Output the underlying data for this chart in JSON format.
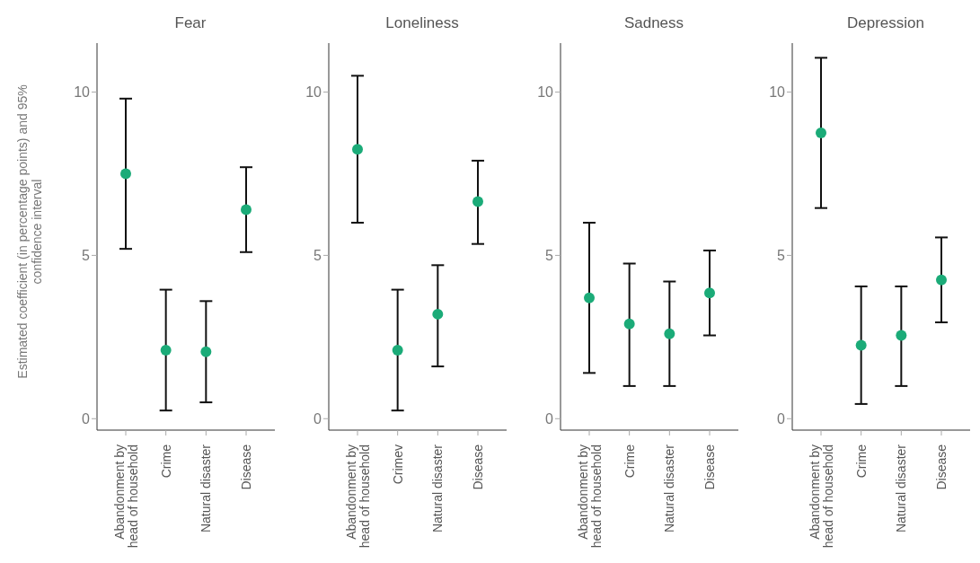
{
  "chart_data": [
    {
      "type": "scatter",
      "title": "Fear",
      "ylabel": "Estimated coefficient (in percentage points) and 95% confidence interval",
      "categories": [
        "Abandonment by head of household",
        "Crime",
        "Natural disaster",
        "Disease"
      ],
      "values": [
        7.5,
        2.1,
        2.05,
        6.4
      ],
      "errors": [
        [
          5.2,
          9.8
        ],
        [
          0.25,
          3.95
        ],
        [
          0.5,
          3.6
        ],
        [
          5.1,
          7.7
        ]
      ],
      "color": "#1bab78",
      "marker": "circle",
      "ylim": [
        -0.35,
        11.5
      ],
      "yticks": [
        0,
        5,
        10
      ]
    },
    {
      "type": "scatter",
      "title": "Loneliness",
      "categories": [
        "Abandonment by head of household",
        "Crimev",
        "Natural disaster",
        "Disease"
      ],
      "values": [
        8.25,
        2.1,
        3.2,
        6.65
      ],
      "errors": [
        [
          6.0,
          10.5
        ],
        [
          0.25,
          3.95
        ],
        [
          1.6,
          4.7
        ],
        [
          5.35,
          7.9
        ]
      ],
      "color": "#1bab78",
      "marker": "circle",
      "ylim": [
        -0.35,
        11.5
      ],
      "yticks": [
        0,
        5,
        10
      ]
    },
    {
      "type": "scatter",
      "title": "Sadness",
      "categories": [
        "Abandonment by head of household",
        "Crime",
        "Natural disaster",
        "Disease"
      ],
      "values": [
        3.7,
        2.9,
        2.6,
        3.85
      ],
      "errors": [
        [
          1.4,
          6.0
        ],
        [
          1.0,
          4.75
        ],
        [
          1.0,
          4.2
        ],
        [
          2.55,
          5.15
        ]
      ],
      "color": "#1bab78",
      "marker": "circle",
      "ylim": [
        -0.35,
        11.5
      ],
      "yticks": [
        0,
        5,
        10
      ]
    },
    {
      "type": "scatter",
      "title": "Depression",
      "categories": [
        "Abandonment by head of household",
        "Crime",
        "Natural disaster",
        "Disease"
      ],
      "values": [
        8.75,
        2.25,
        2.55,
        4.25
      ],
      "errors": [
        [
          6.45,
          11.05
        ],
        [
          0.45,
          4.05
        ],
        [
          1.0,
          4.05
        ],
        [
          2.95,
          5.55
        ]
      ],
      "color": "#1bab78",
      "marker": "circle",
      "ylim": [
        -0.35,
        11.5
      ],
      "yticks": [
        0,
        5,
        10
      ]
    }
  ]
}
